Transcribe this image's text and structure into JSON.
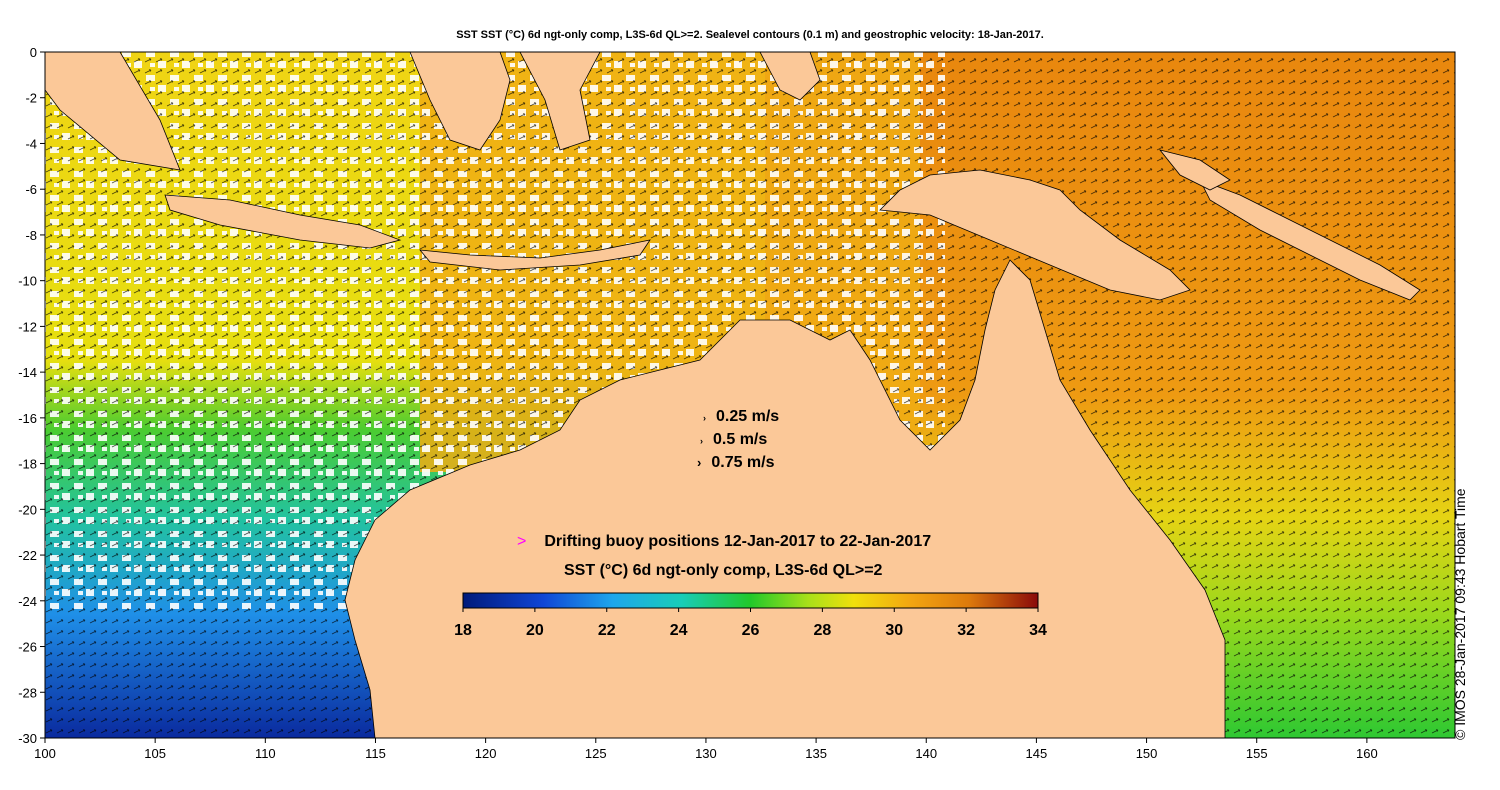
{
  "title": "SST SST (°C) 6d ngt-only comp, L3S-6d QL>=2. Sealevel contours (0.1 m) and geostrophic velocity: 18-Jan-2017.",
  "credit": "© IMOS 28-Jan-2017 09:43 Hobart Time",
  "x_axis": {
    "min": 100,
    "max": 164,
    "ticks": [
      100,
      105,
      110,
      115,
      120,
      125,
      130,
      135,
      140,
      145,
      150,
      155,
      160
    ]
  },
  "y_axis": {
    "min": -30,
    "max": 0,
    "ticks": [
      0,
      -2,
      -4,
      -6,
      -8,
      -10,
      -12,
      -14,
      -16,
      -18,
      -20,
      -22,
      -24,
      -26,
      -28,
      -30
    ]
  },
  "velocity_legend": [
    "0.25 m/s",
    "0.5 m/s",
    "0.75 m/s"
  ],
  "buoy_label": "Drifting buoy positions 12-Jan-2017 to 22-Jan-2017",
  "buoy_marker": ">",
  "colorbar": {
    "label": "SST (°C) 6d ngt-only comp, L3S-6d QL>=2",
    "min": 18,
    "max": 34,
    "ticks": [
      18,
      20,
      22,
      24,
      26,
      28,
      30,
      32,
      34
    ]
  },
  "colors": {
    "land": "#fbc898",
    "cold": "#0a2a9e",
    "cool": "#1f8fe8",
    "cyan": "#19c1d4",
    "green": "#2ec832",
    "yellow": "#e9dc12",
    "orange": "#f2a511",
    "warm": "#e9870e",
    "hot": "#8a0a0a",
    "buoy": "#ff00ff"
  }
}
